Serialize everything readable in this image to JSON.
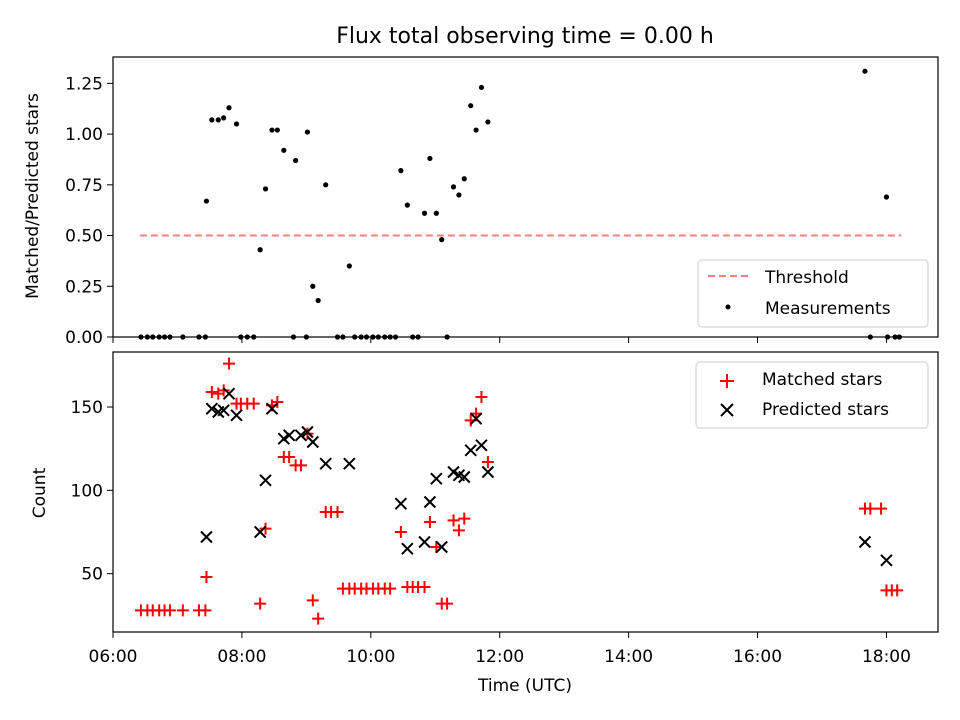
{
  "chart_data": [
    {
      "type": "scatter",
      "title": "Flux total observing time = 0.00 h",
      "xlabel": "",
      "ylabel": "Matched/Predicted stars",
      "xlim": [
        "06:00",
        "18:48"
      ],
      "ylim": [
        0,
        1.38
      ],
      "yticks": [
        "0.00",
        "0.25",
        "0.50",
        "0.75",
        "1.00",
        "1.25"
      ],
      "legend_position": "lower-right",
      "series": [
        {
          "name": "Threshold",
          "style": "dashed-line",
          "color": "#ff7f7f",
          "points": [
            [
              "06:25",
              0.5
            ],
            [
              "18:14",
              0.5
            ]
          ]
        },
        {
          "name": "Measurements",
          "style": "dot",
          "color": "#000000",
          "points": [
            [
              "06:26",
              0
            ],
            [
              "06:32",
              0
            ],
            [
              "06:37",
              0
            ],
            [
              "06:43",
              0
            ],
            [
              "06:48",
              0
            ],
            [
              "06:53",
              0
            ],
            [
              "07:05",
              0
            ],
            [
              "07:20",
              0
            ],
            [
              "07:26",
              0
            ],
            [
              "07:27",
              0.67
            ],
            [
              "07:32",
              1.07
            ],
            [
              "07:38",
              1.07
            ],
            [
              "07:43",
              1.08
            ],
            [
              "07:48",
              1.13
            ],
            [
              "07:55",
              1.05
            ],
            [
              "07:59",
              0
            ],
            [
              "08:05",
              0
            ],
            [
              "08:11",
              0
            ],
            [
              "08:17",
              0.43
            ],
            [
              "08:22",
              0.73
            ],
            [
              "08:28",
              1.02
            ],
            [
              "08:33",
              1.02
            ],
            [
              "08:39",
              0.92
            ],
            [
              "08:48",
              0
            ],
            [
              "08:50",
              0.87
            ],
            [
              "09:00",
              0
            ],
            [
              "09:01",
              1.01
            ],
            [
              "09:06",
              0.25
            ],
            [
              "09:11",
              0.18
            ],
            [
              "09:18",
              0.75
            ],
            [
              "09:29",
              0
            ],
            [
              "09:34",
              0
            ],
            [
              "09:40",
              0.35
            ],
            [
              "09:45",
              0
            ],
            [
              "09:51",
              0
            ],
            [
              "09:56",
              0
            ],
            [
              "10:02",
              0
            ],
            [
              "10:07",
              0
            ],
            [
              "10:13",
              0
            ],
            [
              "10:18",
              0
            ],
            [
              "10:23",
              0
            ],
            [
              "10:28",
              0.82
            ],
            [
              "10:34",
              0.65
            ],
            [
              "10:39",
              0
            ],
            [
              "10:44",
              0
            ],
            [
              "10:50",
              0.61
            ],
            [
              "10:55",
              0.88
            ],
            [
              "11:01",
              0.61
            ],
            [
              "11:06",
              0.48
            ],
            [
              "11:11",
              0
            ],
            [
              "11:17",
              0.74
            ],
            [
              "11:22",
              0.7
            ],
            [
              "11:27",
              0.78
            ],
            [
              "11:33",
              1.14
            ],
            [
              "11:38",
              1.02
            ],
            [
              "11:43",
              1.23
            ],
            [
              "11:49",
              1.06
            ],
            [
              "17:40",
              1.31
            ],
            [
              "17:45",
              0
            ],
            [
              "18:00",
              0.69
            ],
            [
              "18:01",
              0
            ],
            [
              "18:08",
              0
            ],
            [
              "18:12",
              0
            ]
          ]
        }
      ]
    },
    {
      "type": "scatter",
      "title": "",
      "xlabel": "Time (UTC)",
      "ylabel": "Count",
      "xlim": [
        "06:00",
        "18:48"
      ],
      "ylim": [
        15,
        183
      ],
      "xticks": [
        "06:00",
        "08:00",
        "10:00",
        "12:00",
        "14:00",
        "16:00",
        "18:00"
      ],
      "yticks": [
        "50",
        "100",
        "150"
      ],
      "legend_position": "upper-right",
      "series": [
        {
          "name": "Matched stars",
          "marker": "+",
          "color": "#ff0000",
          "points": [
            [
              "06:26",
              28
            ],
            [
              "06:32",
              28
            ],
            [
              "06:37",
              28
            ],
            [
              "06:43",
              28
            ],
            [
              "06:48",
              28
            ],
            [
              "06:53",
              28
            ],
            [
              "07:05",
              28
            ],
            [
              "07:20",
              28
            ],
            [
              "07:26",
              28
            ],
            [
              "07:27",
              48
            ],
            [
              "07:32",
              159
            ],
            [
              "07:38",
              158
            ],
            [
              "07:43",
              160
            ],
            [
              "07:48",
              176
            ],
            [
              "07:55",
              152
            ],
            [
              "07:59",
              152
            ],
            [
              "08:05",
              152
            ],
            [
              "08:11",
              152
            ],
            [
              "08:17",
              32
            ],
            [
              "08:22",
              77
            ],
            [
              "08:28",
              151
            ],
            [
              "08:33",
              153
            ],
            [
              "08:39",
              120
            ],
            [
              "08:44",
              120
            ],
            [
              "08:50",
              115
            ],
            [
              "08:55",
              115
            ],
            [
              "09:01",
              134
            ],
            [
              "09:06",
              34
            ],
            [
              "09:11",
              23
            ],
            [
              "09:18",
              87
            ],
            [
              "09:23",
              87
            ],
            [
              "09:29",
              87
            ],
            [
              "09:34",
              41
            ],
            [
              "09:40",
              41
            ],
            [
              "09:45",
              41
            ],
            [
              "09:51",
              41
            ],
            [
              "09:56",
              41
            ],
            [
              "10:02",
              41
            ],
            [
              "10:07",
              41
            ],
            [
              "10:13",
              41
            ],
            [
              "10:18",
              41
            ],
            [
              "10:28",
              75
            ],
            [
              "10:34",
              42
            ],
            [
              "10:39",
              42
            ],
            [
              "10:44",
              42
            ],
            [
              "10:50",
              42
            ],
            [
              "10:55",
              81
            ],
            [
              "11:01",
              66
            ],
            [
              "11:06",
              32
            ],
            [
              "11:11",
              32
            ],
            [
              "11:17",
              82
            ],
            [
              "11:22",
              76
            ],
            [
              "11:27",
              83
            ],
            [
              "11:33",
              142
            ],
            [
              "11:38",
              146
            ],
            [
              "11:43",
              156
            ],
            [
              "11:49",
              117
            ],
            [
              "17:40",
              89
            ],
            [
              "17:45",
              89
            ],
            [
              "17:55",
              89
            ],
            [
              "18:00",
              40
            ],
            [
              "18:05",
              40
            ],
            [
              "18:10",
              40
            ]
          ]
        },
        {
          "name": "Predicted stars",
          "marker": "x",
          "color": "#000000",
          "points": [
            [
              "07:27",
              72
            ],
            [
              "07:32",
              149
            ],
            [
              "07:38",
              147
            ],
            [
              "07:43",
              148
            ],
            [
              "07:48",
              158
            ],
            [
              "07:55",
              145
            ],
            [
              "08:17",
              75
            ],
            [
              "08:22",
              106
            ],
            [
              "08:28",
              149
            ],
            [
              "08:39",
              131
            ],
            [
              "08:44",
              133
            ],
            [
              "08:55",
              133
            ],
            [
              "09:01",
              135
            ],
            [
              "09:06",
              129
            ],
            [
              "09:18",
              116
            ],
            [
              "09:40",
              116
            ],
            [
              "10:28",
              92
            ],
            [
              "10:34",
              65
            ],
            [
              "10:50",
              69
            ],
            [
              "10:55",
              93
            ],
            [
              "11:01",
              107
            ],
            [
              "11:06",
              66
            ],
            [
              "11:17",
              111
            ],
            [
              "11:22",
              109
            ],
            [
              "11:27",
              108
            ],
            [
              "11:33",
              124
            ],
            [
              "11:38",
              143
            ],
            [
              "11:43",
              127
            ],
            [
              "11:49",
              111
            ],
            [
              "17:40",
              69
            ],
            [
              "18:00",
              58
            ]
          ]
        }
      ]
    }
  ]
}
